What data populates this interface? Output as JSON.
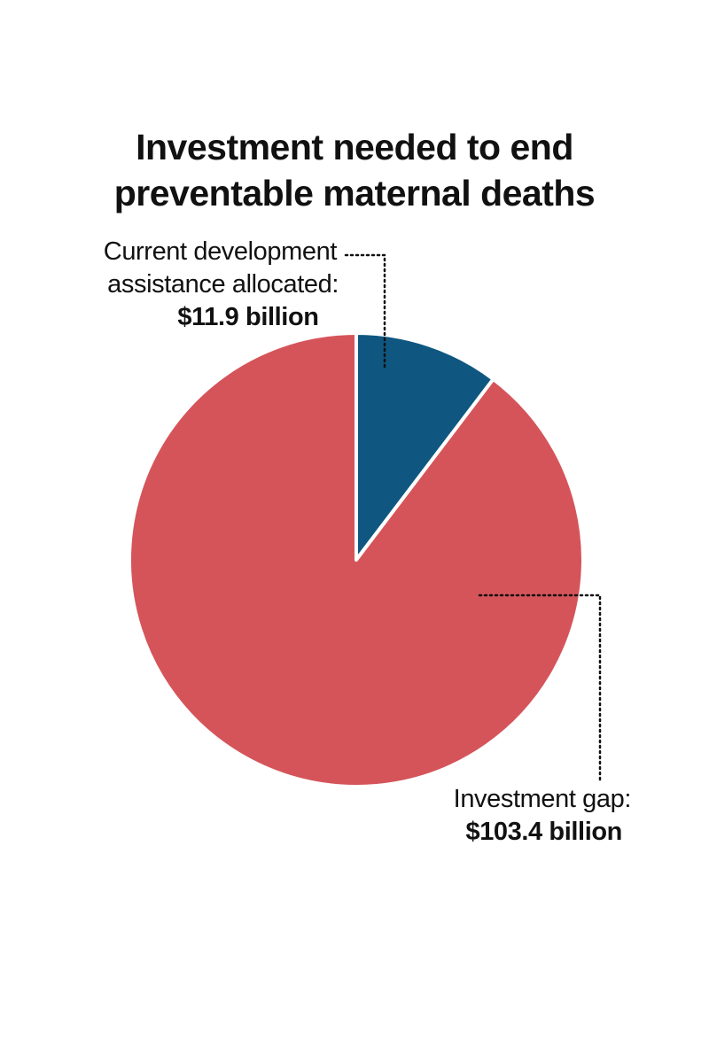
{
  "chart_data": {
    "type": "pie",
    "title_lines": [
      "Investment needed to end",
      "preventable maternal deaths"
    ],
    "unit": "billion",
    "slices": [
      {
        "label_lines": [
          "Current development",
          "assistance allocated:"
        ],
        "value": 11.9,
        "value_label": "$11.9 billion",
        "color": "#0f5780"
      },
      {
        "label_lines": [
          "Investment gap:"
        ],
        "value": 103.4,
        "value_label": "$103.4 billion",
        "color": "#d5545a"
      }
    ],
    "start_angle": "12 o'clock",
    "direction": "clockwise",
    "slice_border_color": "#ffffff",
    "leader_line_style": "dotted"
  }
}
